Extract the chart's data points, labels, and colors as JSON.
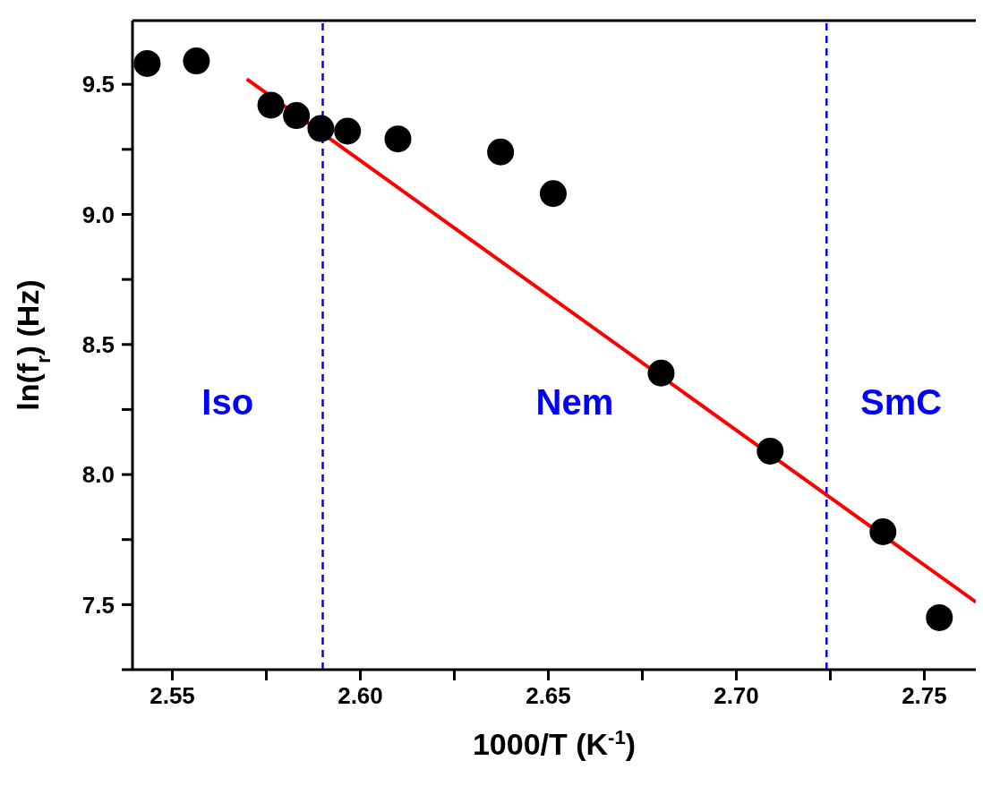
{
  "chart_data": {
    "type": "scatter",
    "xlabel": "1000/T (K$^{-1}$)",
    "ylabel": "ln(f$_{r}$) (Hz)",
    "xlim": [
      2.5394,
      2.7637
    ],
    "ylim": [
      7.25,
      9.745
    ],
    "xticks": [
      2.55,
      {
        "value": 2.575,
        "label": null
      },
      "2.60",
      {
        "value": 2.625,
        "label": null
      },
      2.65,
      {
        "value": 2.675,
        "label": null
      },
      "2.70",
      {
        "value": 2.725,
        "label": null
      },
      2.75
    ],
    "yticks": [
      {
        "value": 7.25,
        "label": null
      },
      7.5,
      {
        "value": 7.75,
        "label": null
      },
      "8.0",
      {
        "value": 8.25,
        "label": null
      },
      8.5,
      {
        "value": 8.75,
        "label": null
      },
      "9.0",
      {
        "value": 9.25,
        "label": null
      },
      9.5
    ],
    "legend": false,
    "series": [
      {
        "marker": "circle",
        "color": "#000000",
        "x": [
          2.5433,
          2.5564,
          2.5762,
          2.583,
          2.5895,
          2.5966,
          2.61,
          2.6373,
          2.6513,
          2.68,
          2.709,
          2.739,
          2.754
        ],
        "values": [
          9.58,
          9.59,
          9.42,
          9.38,
          9.33,
          9.32,
          9.29,
          9.24,
          9.08,
          8.39,
          8.09,
          7.78,
          7.45
        ]
      },
      {
        "type": "line",
        "color": "#ff0000",
        "x": [
          2.5698,
          2.7637
        ],
        "values": [
          9.52,
          7.51
        ]
      }
    ],
    "ref_lines": [
      {
        "axis": "x",
        "value": 2.59,
        "color": "#0000ff",
        "line_style": "dashed"
      },
      {
        "axis": "x",
        "value": 2.724,
        "color": "#0000ff",
        "line_style": "dashed"
      }
    ],
    "annotations": [
      "Iso",
      "Nem",
      "SmC"
    ]
  }
}
